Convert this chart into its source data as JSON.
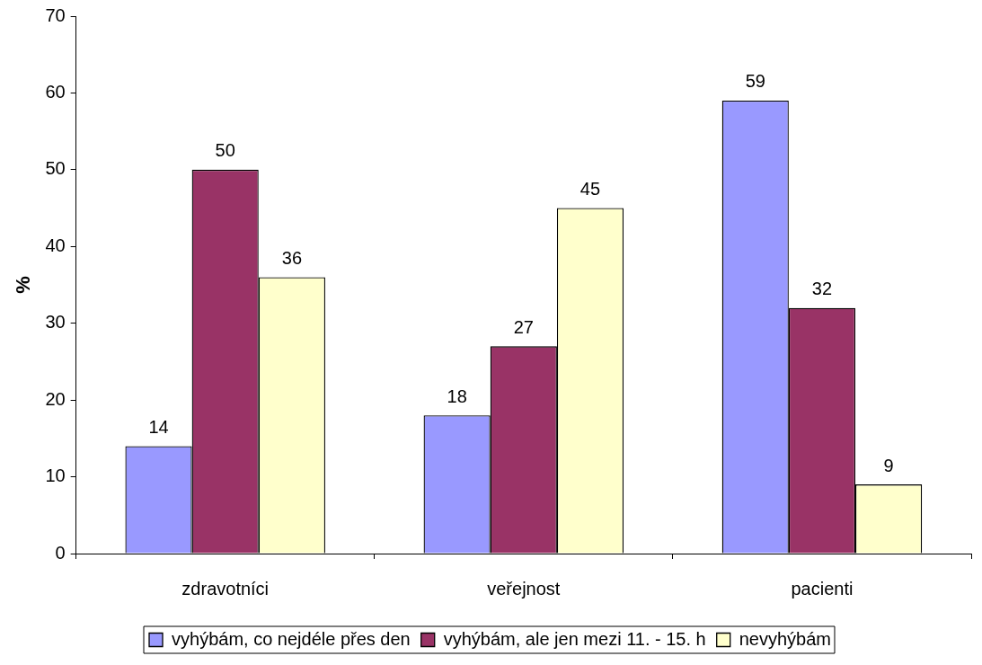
{
  "chart_data": {
    "type": "bar",
    "ylabel": "%",
    "categories": [
      "zdravotníci",
      "veřejnost",
      "pacienti"
    ],
    "series": [
      {
        "name": "vyhýbám, co nejdéle přes den",
        "color": "#9999ff",
        "values": [
          14,
          18,
          59
        ]
      },
      {
        "name": "vyhýbám, ale jen mezi 11. - 15. h",
        "color": "#993366",
        "values": [
          50,
          27,
          32
        ]
      },
      {
        "name": "nevyhýbám",
        "color": "#ffffcc",
        "values": [
          36,
          45,
          9
        ]
      }
    ],
    "ylim": [
      0,
      70
    ],
    "yticks": [
      0,
      10,
      20,
      30,
      40,
      50,
      60,
      70
    ],
    "grid": false,
    "legend": "bottom",
    "data_labels": true
  }
}
